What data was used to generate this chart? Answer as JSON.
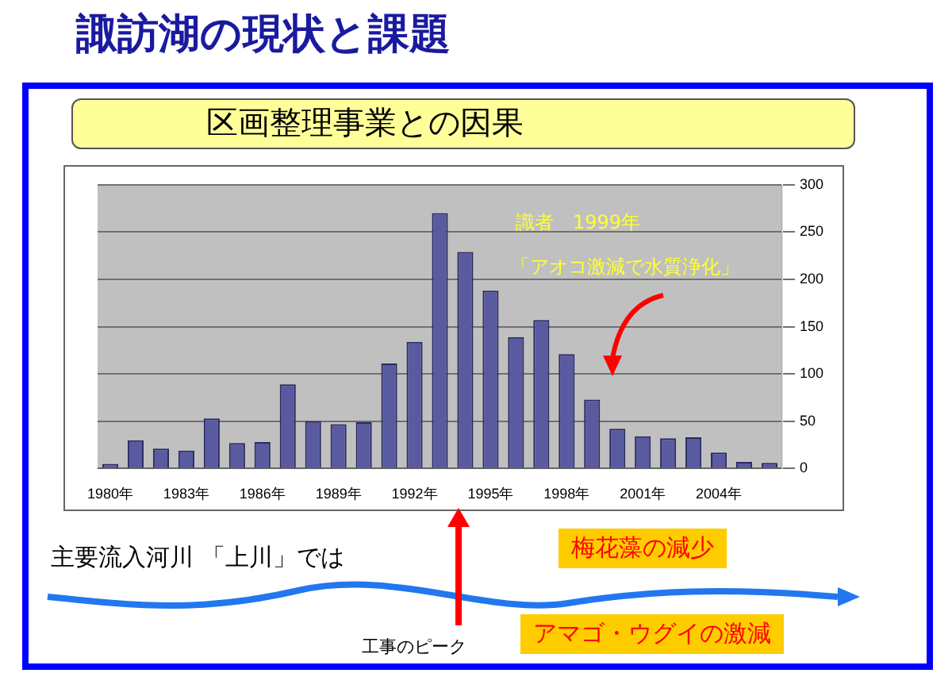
{
  "chart_data": {
    "type": "bar",
    "title": "諏訪湖の現状と課題",
    "subtitle": "区画整理事業との因果",
    "categories": [
      "1980年",
      null,
      null,
      "1983年",
      null,
      null,
      "1986年",
      null,
      null,
      "1989年",
      null,
      null,
      "1992年",
      null,
      null,
      "1995年",
      null,
      null,
      "1998年",
      null,
      null,
      "2001年",
      null,
      null,
      "2004年",
      null,
      null
    ],
    "values": [
      5,
      30,
      21,
      19,
      53,
      27,
      28,
      89,
      50,
      47,
      49,
      111,
      134,
      270,
      229,
      188,
      139,
      157,
      121,
      73,
      42,
      34,
      32,
      33,
      17,
      7,
      6
    ],
    "color": "#5a5aa0",
    "ylim": [
      0,
      300
    ],
    "yticks": [
      0,
      50,
      100,
      150,
      200,
      250,
      300
    ],
    "grid": "y",
    "legend": false,
    "annotations": [
      "識者　1999年",
      "「アオコ激減で水質浄化」",
      "主要流入河川 「上川」では",
      "梅花藻の減少",
      "アマゴ・ウグイの激減",
      "工事のピーク"
    ]
  }
}
